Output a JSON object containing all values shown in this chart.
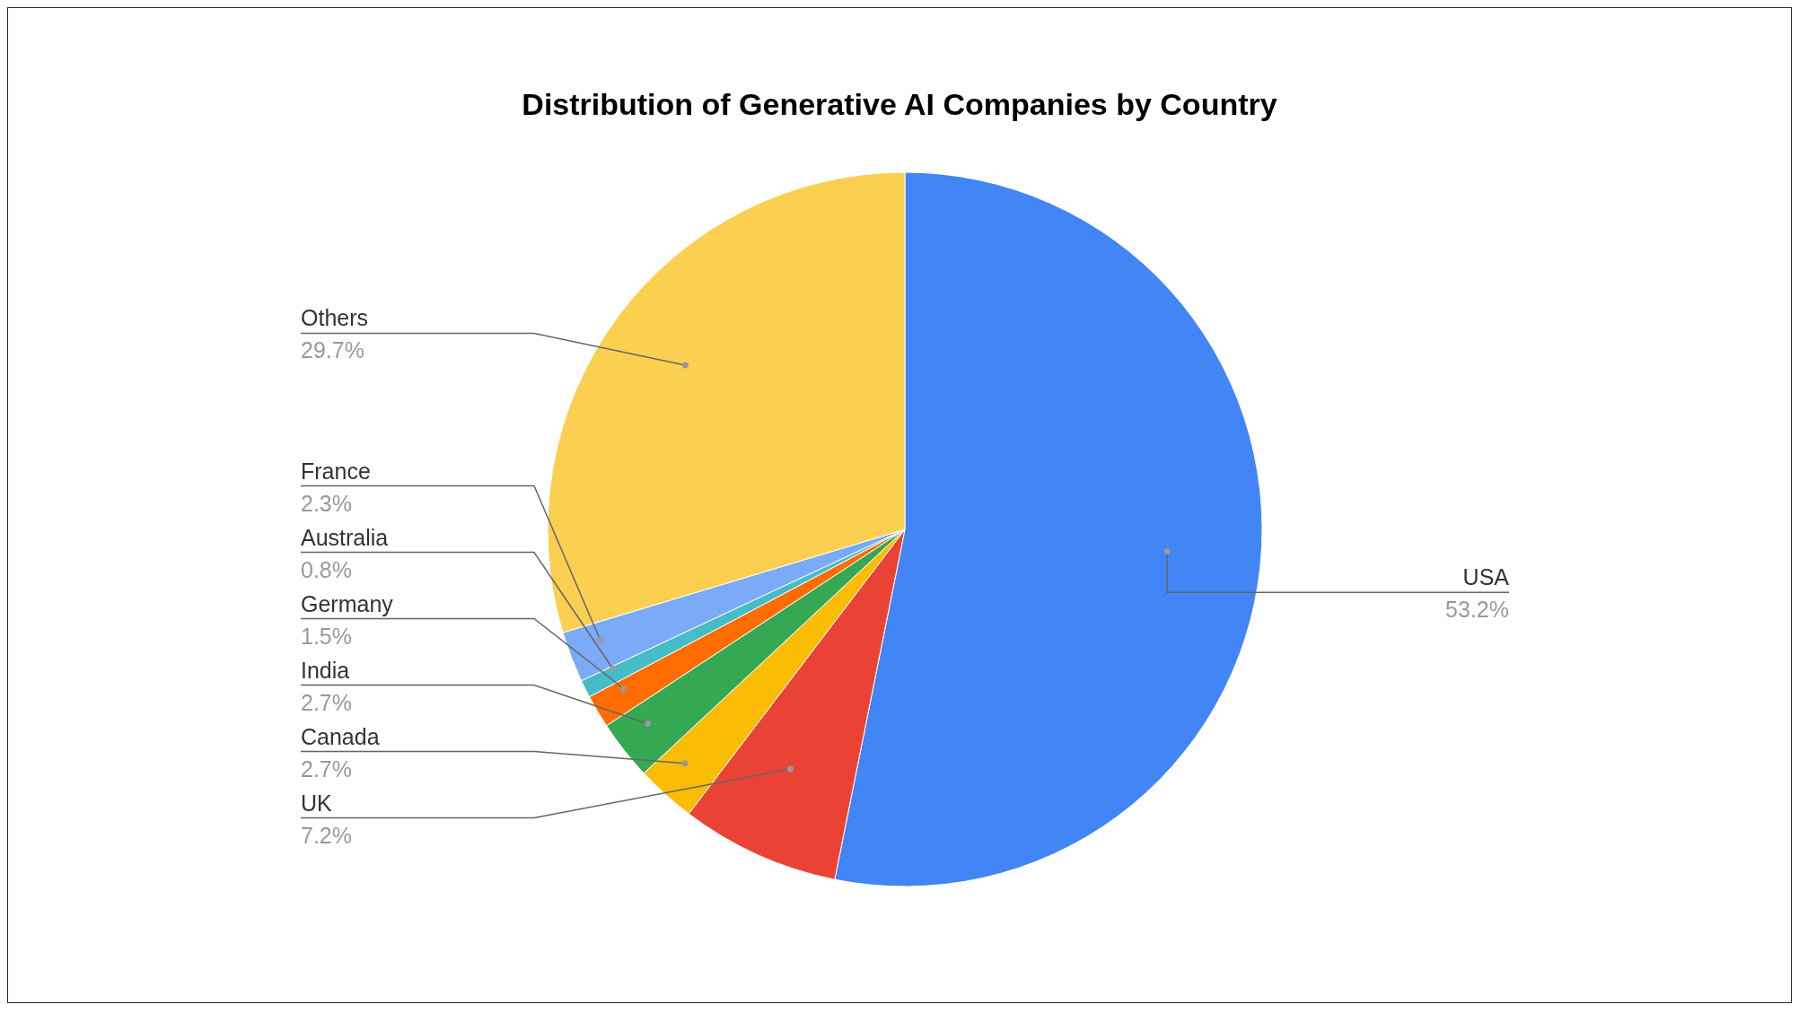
{
  "chart_data": {
    "type": "pie",
    "title": "Distribution of Generative AI Companies by Country",
    "categories": [
      "USA",
      "UK",
      "Canada",
      "India",
      "Germany",
      "Australia",
      "France",
      "Others"
    ],
    "values": [
      53.2,
      7.2,
      2.7,
      2.7,
      1.5,
      0.8,
      2.3,
      29.7
    ],
    "colors": [
      "#4285f4",
      "#ea4335",
      "#fbbc04",
      "#34a853",
      "#ff6d01",
      "#46bdc6",
      "#7baaf7",
      "#fbcf50"
    ],
    "value_labels": [
      "53.2%",
      "7.2%",
      "2.7%",
      "2.7%",
      "1.5%",
      "0.8%",
      "2.3%",
      "29.7%"
    ]
  }
}
